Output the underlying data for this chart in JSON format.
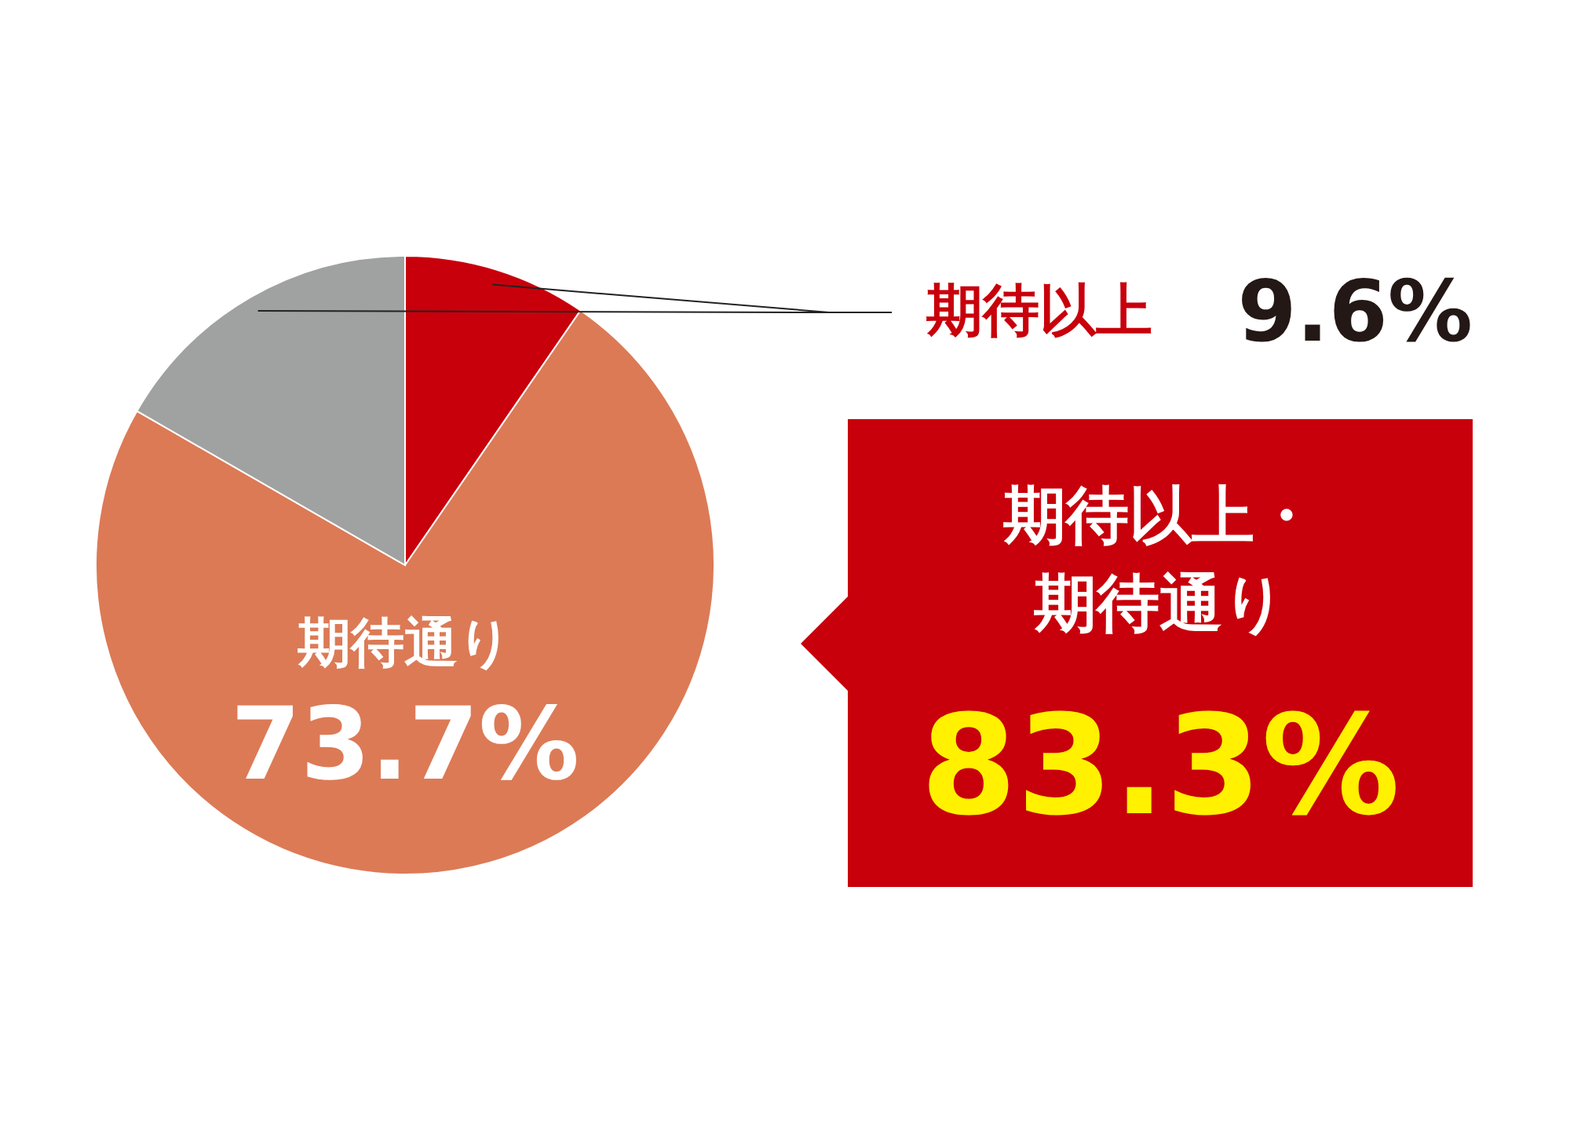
{
  "chart_data": {
    "type": "pie",
    "categories": [
      "期待以上",
      "期待通り",
      null
    ],
    "values": [
      9.6,
      73.7,
      16.7
    ],
    "colors": [
      "#c8000b",
      "#dc7a56",
      "#a0a1a1"
    ],
    "value_labels": [
      "9.6%",
      "73.7%",
      null
    ],
    "annotations": [
      "期待以上・期待通り",
      "83.3%"
    ]
  }
}
